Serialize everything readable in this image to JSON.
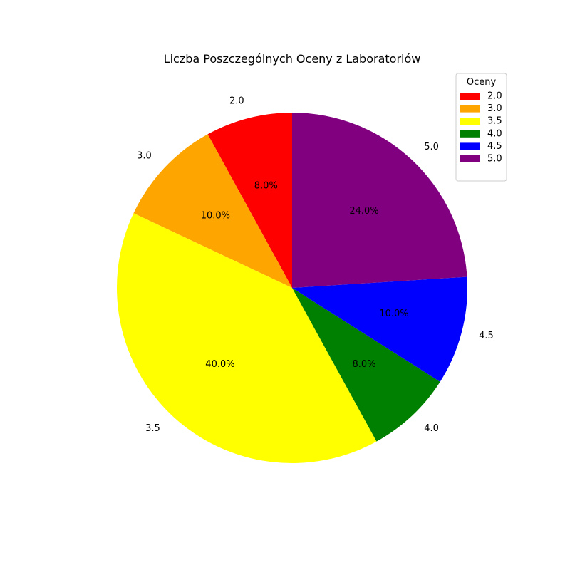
{
  "chart_data": {
    "type": "pie",
    "title": "Liczba Poszczególnych Oceny z Laboratoriów",
    "categories": [
      "2.0",
      "3.0",
      "3.5",
      "4.0",
      "4.5",
      "5.0"
    ],
    "values": [
      8.0,
      10.0,
      40.0,
      8.0,
      10.0,
      24.0
    ],
    "percent_labels": [
      "8.0%",
      "10.0%",
      "40.0%",
      "8.0%",
      "10.0%",
      "24.0%"
    ],
    "colors": [
      "#ff0000",
      "#ffa500",
      "#ffff00",
      "#008000",
      "#0000ff",
      "#800080"
    ],
    "start_angle_deg": 90,
    "direction": "counterclockwise",
    "legend": {
      "title": "Oceny",
      "placement": "top-right",
      "entries": [
        "2.0",
        "3.0",
        "3.5",
        "4.0",
        "4.5",
        "5.0"
      ]
    }
  }
}
